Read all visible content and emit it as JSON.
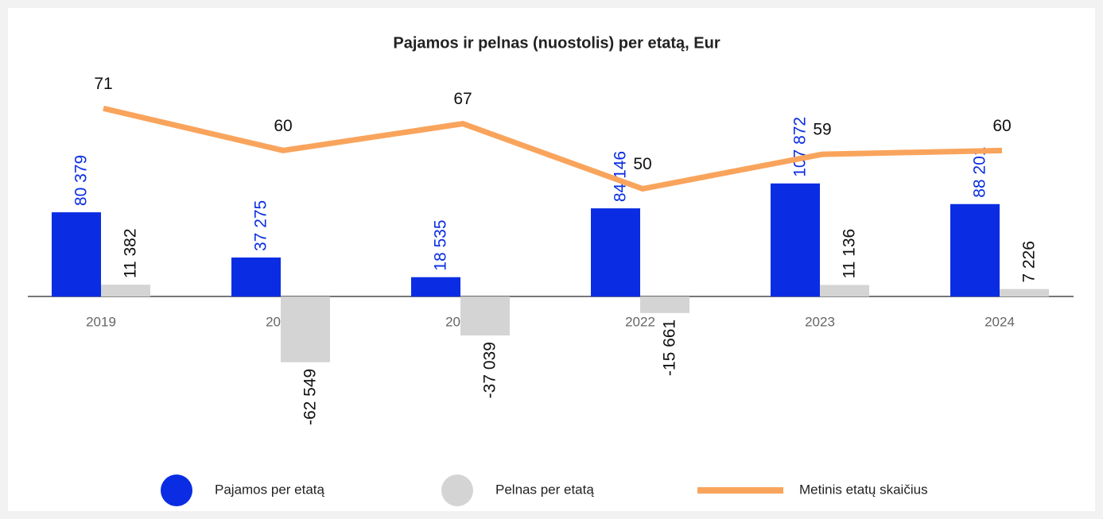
{
  "chart_data": {
    "type": "bar_line",
    "title": "Pajamos ir pelnas (nuostolis) per etatą, Eur",
    "categories": [
      "2019",
      "2020",
      "2021",
      "2022",
      "2023",
      "2024"
    ],
    "series": [
      {
        "name": "Pajamos per etatą",
        "color": "#0a2de3",
        "type": "bar",
        "values": [
          80379,
          37275,
          18535,
          84146,
          107872,
          88201
        ],
        "value_labels": [
          "80 379",
          "37 275",
          "18 535",
          "84 146",
          "107 872",
          "88 201"
        ]
      },
      {
        "name": "Pelnas per etatą",
        "color": "#d4d4d4",
        "type": "bar",
        "values": [
          11382,
          -62549,
          -37039,
          -15661,
          11136,
          7226
        ],
        "value_labels": [
          "11 382",
          "-62 549",
          "-37 039",
          "-15 661",
          "11 136",
          "7 226"
        ]
      },
      {
        "name": "Metinis etatų skaičius",
        "color": "#f9a45c",
        "type": "line",
        "axis": "y2",
        "values": [
          71,
          60,
          67,
          50,
          59,
          60
        ]
      }
    ],
    "ylim": [
      -140000,
      160000
    ],
    "y2lim": [
      20,
      80
    ],
    "grid": false
  }
}
